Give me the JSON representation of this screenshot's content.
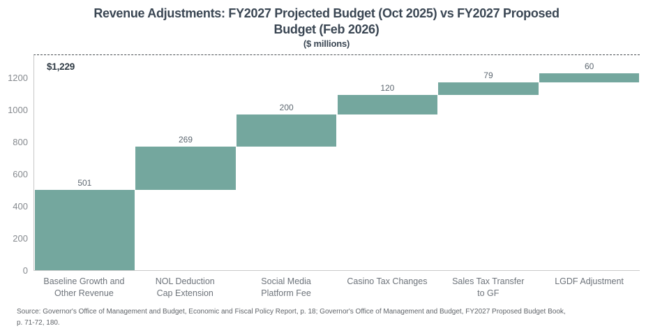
{
  "header": {
    "title_line1": "Revenue Adjustments: FY2027 Projected Budget (Oct 2025) vs FY2027 Proposed",
    "title_line2": "Budget (Feb 2026)",
    "subtitle": "($ millions)"
  },
  "chart_data": {
    "type": "bar",
    "subtype": "waterfall",
    "title": "Revenue Adjustments: FY2027 Projected Budget (Oct 2025) vs FY2027 Proposed Budget (Feb 2026)",
    "unit_label": "($ millions)",
    "categories": [
      "Baseline Growth and\nOther Revenue",
      "NOL Deduction\nCap Extension",
      "Social Media\nPlatform Fee",
      "Casino Tax Changes",
      "Sales Tax Transfer\nto GF",
      "LGDF Adjustment"
    ],
    "values": [
      501,
      269,
      200,
      120,
      79,
      60
    ],
    "cumulative": [
      501,
      770,
      970,
      1090,
      1169,
      1229
    ],
    "total": 1229,
    "total_label": "$1,229",
    "yticks": [
      0,
      200,
      400,
      600,
      800,
      1000,
      1200
    ],
    "ylim": [
      0,
      1340
    ],
    "bar_color": "#74a79e",
    "grid": "off",
    "legend": "none",
    "total_reference_line": "dashed-top"
  },
  "footer": {
    "source": "Source: Governor's Office of Management and Budget, Economic and Fiscal Policy Report, p. 18; Governor's Office of Management and Budget, FY2027 Proposed Budget Book,\np. 71-72, 180."
  }
}
